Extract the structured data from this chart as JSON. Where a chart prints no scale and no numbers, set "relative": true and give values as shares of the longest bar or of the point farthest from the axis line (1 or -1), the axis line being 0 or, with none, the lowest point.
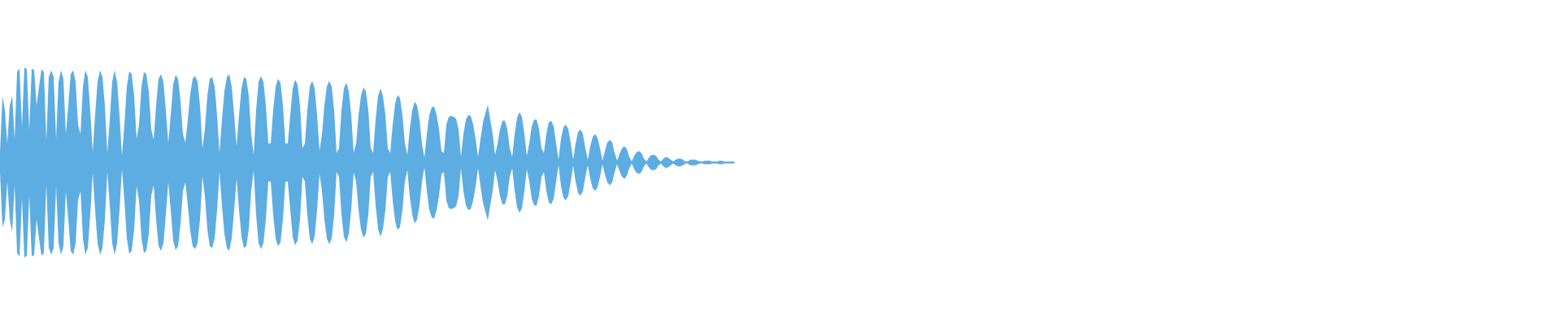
{
  "chart_data": {
    "type": "area",
    "relative": true,
    "categories": [
      null,
      null,
      null,
      null,
      null,
      null,
      null,
      null,
      null,
      null,
      null,
      null,
      null,
      null,
      null,
      null,
      null,
      null,
      null,
      null,
      null,
      null,
      null,
      null,
      null,
      null,
      null,
      null,
      null,
      null,
      null,
      null,
      null,
      null,
      null,
      null,
      null,
      null,
      null,
      null,
      null,
      null,
      null,
      null,
      null,
      null,
      null,
      null,
      null,
      null,
      null,
      null,
      null,
      null,
      null,
      null,
      null,
      null,
      null,
      null,
      null,
      null,
      null,
      null,
      null,
      null,
      null,
      null,
      null,
      null,
      null,
      null,
      null,
      null,
      null,
      null,
      null,
      null,
      null,
      null,
      null,
      null,
      null,
      null,
      null,
      null,
      null,
      null,
      null,
      null,
      null,
      null,
      null,
      null,
      null,
      null,
      null,
      null,
      null,
      null,
      null,
      null,
      null,
      null,
      null,
      null,
      null,
      null,
      null,
      null,
      null,
      null,
      null,
      null,
      null,
      null,
      null,
      null,
      null,
      null,
      null,
      null,
      null,
      null,
      null,
      null,
      null,
      null,
      null,
      null,
      null,
      null,
      null,
      null,
      null,
      null,
      null,
      null,
      null,
      null,
      null,
      null,
      null,
      null,
      null,
      null,
      null,
      null,
      null,
      null,
      null,
      null,
      null,
      null,
      null,
      null,
      null,
      null,
      null,
      null,
      null,
      null,
      null,
      null,
      null,
      null,
      null,
      null,
      null,
      null,
      null,
      null,
      null,
      null,
      null,
      null,
      null,
      null,
      null,
      null,
      null,
      null,
      null,
      null,
      null,
      null,
      null,
      null,
      null,
      null,
      null,
      null,
      null,
      null,
      null,
      null,
      null,
      null,
      null,
      null,
      null,
      null,
      null,
      null,
      null,
      null,
      null,
      null,
      null,
      null,
      null,
      null,
      null,
      null,
      null,
      null,
      null,
      null,
      null,
      null,
      null,
      null,
      null,
      null,
      null,
      null,
      null,
      null,
      null,
      null,
      null,
      null,
      null,
      null,
      null,
      null,
      null,
      null,
      null,
      null,
      null,
      null,
      null,
      null,
      null,
      null,
      null,
      null,
      null,
      null,
      null,
      null,
      null,
      null,
      null,
      null,
      null,
      null,
      null,
      null,
      null,
      null,
      null,
      null,
      null,
      null,
      null,
      null,
      null,
      null,
      null,
      null,
      null,
      null,
      null,
      null,
      null,
      null,
      null,
      null,
      null,
      null,
      null,
      null,
      null,
      null,
      null,
      null,
      null,
      null,
      null,
      null,
      null,
      null,
      null,
      null,
      null,
      null,
      null,
      null,
      null,
      null
    ],
    "series": [
      {
        "color": "#5dade2",
        "values": [
          0.1,
          0.7,
          0.55,
          0.2,
          0.6,
          0.7,
          0.25,
          0.95,
          0.99,
          0.38,
          1.0,
          0.98,
          0.34,
          0.99,
          0.97,
          0.6,
          0.8,
          0.98,
          0.95,
          0.23,
          0.9,
          0.97,
          0.9,
          0.25,
          0.85,
          0.97,
          0.88,
          0.3,
          0.6,
          0.93,
          0.97,
          0.85,
          0.4,
          0.3,
          0.8,
          0.97,
          0.9,
          0.55,
          0.11,
          0.5,
          0.85,
          0.97,
          0.9,
          0.6,
          0.1,
          0.45,
          0.85,
          0.97,
          0.85,
          0.5,
          0.07,
          0.4,
          0.8,
          0.96,
          0.93,
          0.7,
          0.25,
          0.4,
          0.8,
          0.95,
          0.93,
          0.75,
          0.35,
          0.24,
          0.6,
          0.88,
          0.93,
          0.85,
          0.55,
          0.21,
          0.5,
          0.82,
          0.92,
          0.88,
          0.65,
          0.3,
          0.21,
          0.45,
          0.72,
          0.88,
          0.91,
          0.85,
          0.6,
          0.15,
          0.35,
          0.7,
          0.88,
          0.9,
          0.8,
          0.5,
          0.1,
          0.45,
          0.75,
          0.9,
          0.93,
          0.8,
          0.5,
          0.17,
          0.5,
          0.78,
          0.9,
          0.88,
          0.7,
          0.3,
          0.08,
          0.55,
          0.85,
          0.91,
          0.85,
          0.6,
          0.2,
          0.2,
          0.55,
          0.8,
          0.88,
          0.84,
          0.6,
          0.2,
          0.2,
          0.5,
          0.78,
          0.87,
          0.82,
          0.6,
          0.15,
          0.2,
          0.55,
          0.8,
          0.86,
          0.78,
          0.5,
          0.12,
          0.3,
          0.6,
          0.8,
          0.86,
          0.8,
          0.55,
          0.1,
          0.15,
          0.55,
          0.78,
          0.84,
          0.75,
          0.5,
          0.1,
          0.2,
          0.5,
          0.7,
          0.79,
          0.75,
          0.55,
          0.15,
          0.1,
          0.45,
          0.7,
          0.78,
          0.7,
          0.5,
          0.15,
          0.1,
          0.4,
          0.62,
          0.71,
          0.68,
          0.5,
          0.2,
          0.08,
          0.35,
          0.55,
          0.64,
          0.6,
          0.45,
          0.2,
          0.05,
          0.3,
          0.5,
          0.58,
          0.59,
          0.5,
          0.35,
          0.12,
          0.1,
          0.4,
          0.48,
          0.49,
          0.48,
          0.46,
          0.35,
          0.06,
          0.3,
          0.45,
          0.5,
          0.49,
          0.4,
          0.25,
          0.06,
          0.25,
          0.42,
          0.52,
          0.61,
          0.45,
          0.3,
          0.08,
          0.2,
          0.35,
          0.44,
          0.44,
          0.35,
          0.15,
          0.06,
          0.3,
          0.47,
          0.53,
          0.48,
          0.3,
          0.07,
          0.2,
          0.38,
          0.45,
          0.45,
          0.35,
          0.15,
          0.1,
          0.3,
          0.42,
          0.44,
          0.38,
          0.2,
          0.03,
          0.25,
          0.37,
          0.4,
          0.35,
          0.2,
          0.03,
          0.2,
          0.32,
          0.35,
          0.3,
          0.15,
          0.03,
          0.17,
          0.27,
          0.3,
          0.26,
          0.15,
          0.02,
          0.12,
          0.21,
          0.24,
          0.21,
          0.1,
          0.02,
          0.09,
          0.15,
          0.17,
          0.14,
          0.06,
          0.01,
          0.07,
          0.11,
          0.12,
          0.1,
          0.04,
          0.01,
          0.05,
          0.08,
          0.08,
          0.07,
          0.03,
          0.01,
          0.04,
          0.06,
          0.05,
          0.03,
          0.01,
          0.03,
          0.04,
          0.04,
          0.03,
          0.01,
          0.01,
          0.03,
          0.03,
          0.03,
          0.02,
          0.01,
          0.01,
          0.02,
          0.02,
          0.02,
          0.01,
          0.01,
          0.01,
          0.02,
          0.02,
          0.01,
          0.01,
          0.01,
          0.01,
          0.01
        ]
      },
      {
        "color": "#5dade2",
        "values": [
          -0.1,
          -0.68,
          -0.6,
          -0.2,
          -0.6,
          -0.73,
          -0.24,
          -0.95,
          -0.99,
          -0.38,
          -1.0,
          -0.98,
          -0.34,
          -0.99,
          -0.97,
          -0.6,
          -0.8,
          -0.98,
          -0.95,
          -0.23,
          -0.9,
          -0.97,
          -0.9,
          -0.25,
          -0.85,
          -0.97,
          -0.88,
          -0.3,
          -0.6,
          -0.93,
          -0.97,
          -0.85,
          -0.4,
          -0.3,
          -0.8,
          -0.97,
          -0.9,
          -0.55,
          -0.11,
          -0.5,
          -0.85,
          -0.97,
          -0.9,
          -0.6,
          -0.1,
          -0.45,
          -0.85,
          -0.97,
          -0.85,
          -0.5,
          -0.07,
          -0.4,
          -0.8,
          -0.96,
          -0.93,
          -0.7,
          -0.25,
          -0.4,
          -0.8,
          -0.95,
          -0.93,
          -0.75,
          -0.35,
          -0.24,
          -0.6,
          -0.88,
          -0.93,
          -0.85,
          -0.55,
          -0.21,
          -0.5,
          -0.82,
          -0.92,
          -0.88,
          -0.65,
          -0.3,
          -0.21,
          -0.45,
          -0.72,
          -0.88,
          -0.91,
          -0.85,
          -0.6,
          -0.15,
          -0.35,
          -0.7,
          -0.88,
          -0.9,
          -0.8,
          -0.5,
          -0.1,
          -0.45,
          -0.75,
          -0.9,
          -0.93,
          -0.8,
          -0.5,
          -0.17,
          -0.5,
          -0.78,
          -0.9,
          -0.88,
          -0.7,
          -0.3,
          -0.08,
          -0.55,
          -0.85,
          -0.91,
          -0.85,
          -0.6,
          -0.2,
          -0.2,
          -0.55,
          -0.8,
          -0.88,
          -0.84,
          -0.6,
          -0.2,
          -0.2,
          -0.5,
          -0.78,
          -0.87,
          -0.82,
          -0.6,
          -0.15,
          -0.2,
          -0.55,
          -0.8,
          -0.86,
          -0.78,
          -0.5,
          -0.12,
          -0.3,
          -0.6,
          -0.8,
          -0.86,
          -0.8,
          -0.55,
          -0.1,
          -0.15,
          -0.55,
          -0.78,
          -0.84,
          -0.75,
          -0.5,
          -0.1,
          -0.2,
          -0.5,
          -0.7,
          -0.79,
          -0.75,
          -0.55,
          -0.15,
          -0.1,
          -0.45,
          -0.7,
          -0.78,
          -0.7,
          -0.5,
          -0.15,
          -0.1,
          -0.4,
          -0.62,
          -0.71,
          -0.68,
          -0.5,
          -0.2,
          -0.08,
          -0.35,
          -0.55,
          -0.64,
          -0.6,
          -0.45,
          -0.2,
          -0.05,
          -0.3,
          -0.5,
          -0.58,
          -0.59,
          -0.5,
          -0.35,
          -0.12,
          -0.1,
          -0.4,
          -0.48,
          -0.49,
          -0.48,
          -0.46,
          -0.35,
          -0.06,
          -0.3,
          -0.45,
          -0.5,
          -0.49,
          -0.4,
          -0.25,
          -0.06,
          -0.25,
          -0.42,
          -0.52,
          -0.61,
          -0.45,
          -0.3,
          -0.08,
          -0.2,
          -0.35,
          -0.44,
          -0.44,
          -0.35,
          -0.15,
          -0.06,
          -0.3,
          -0.47,
          -0.53,
          -0.48,
          -0.3,
          -0.07,
          -0.2,
          -0.38,
          -0.45,
          -0.45,
          -0.35,
          -0.15,
          -0.1,
          -0.3,
          -0.42,
          -0.44,
          -0.38,
          -0.2,
          -0.03,
          -0.25,
          -0.37,
          -0.4,
          -0.35,
          -0.2,
          -0.03,
          -0.2,
          -0.32,
          -0.35,
          -0.3,
          -0.15,
          -0.03,
          -0.17,
          -0.27,
          -0.3,
          -0.26,
          -0.15,
          -0.02,
          -0.12,
          -0.21,
          -0.24,
          -0.21,
          -0.1,
          -0.02,
          -0.09,
          -0.15,
          -0.17,
          -0.14,
          -0.06,
          -0.01,
          -0.07,
          -0.11,
          -0.12,
          -0.1,
          -0.04,
          -0.01,
          -0.05,
          -0.08,
          -0.08,
          -0.07,
          -0.03,
          -0.01,
          -0.04,
          -0.06,
          -0.05,
          -0.03,
          -0.01,
          -0.03,
          -0.04,
          -0.04,
          -0.03,
          -0.01,
          -0.01,
          -0.03,
          -0.03,
          -0.03,
          -0.02,
          -0.01,
          -0.01,
          -0.02,
          -0.02,
          -0.02,
          -0.01,
          -0.01,
          -0.01,
          -0.02,
          -0.02,
          -0.01,
          -0.01,
          -0.01,
          -0.01,
          -0.01
        ]
      }
    ]
  }
}
